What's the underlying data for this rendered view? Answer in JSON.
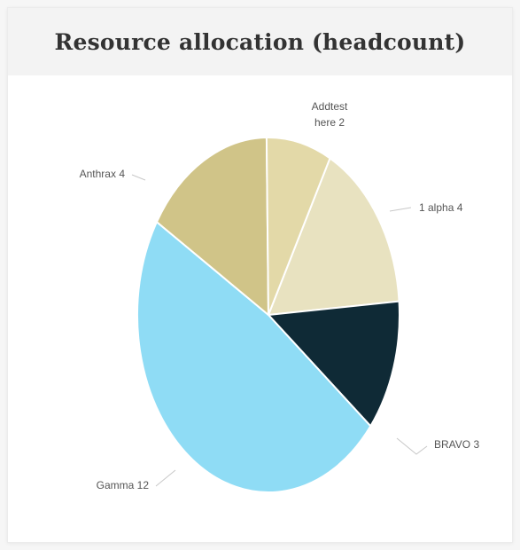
{
  "chart_data": {
    "type": "pie",
    "title": "Resource allocation (headcount)",
    "slices": [
      {
        "label": "1 alpha 4",
        "label_lines": [
          "1 alpha 4"
        ],
        "value": 4,
        "color": "#e8e2c0",
        "label_side": "right"
      },
      {
        "label": "BRAVO 3",
        "label_lines": [
          "BRAVO 3"
        ],
        "value": 3,
        "color": "#0f2a36",
        "label_side": "right"
      },
      {
        "label": "Gamma 12",
        "label_lines": [
          "Gamma 12"
        ],
        "value": 12,
        "color": "#8fdcf5",
        "label_side": "left"
      },
      {
        "label": "Anthrax 4",
        "label_lines": [
          "Anthrax 4"
        ],
        "value": 4,
        "color": "#d0c488",
        "label_side": "left"
      },
      {
        "label": "Addtest here 2",
        "label_lines": [
          "Addtest",
          "here 2"
        ],
        "value": 2,
        "color": "#e3d9a8",
        "label_side": "top"
      }
    ],
    "legend": "none",
    "data_labels": "outside with leader lines"
  }
}
